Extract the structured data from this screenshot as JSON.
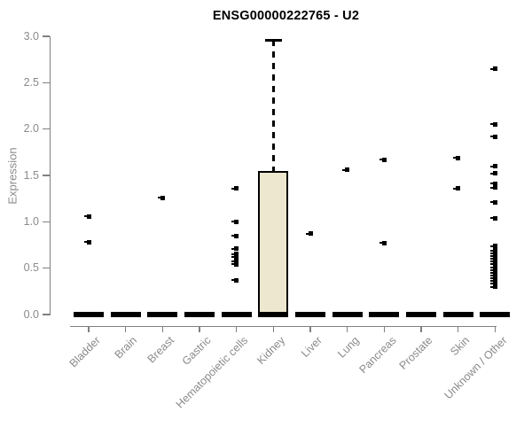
{
  "window": {
    "background": "#ffffff"
  },
  "chart_data": {
    "type": "boxplot",
    "title": "ENSG00000222765 - U2",
    "xlabel": "",
    "ylabel": "Expression",
    "ylim": [
      0,
      3
    ],
    "ytick_labels": [
      "0.0",
      "0.5",
      "1.0",
      "1.5",
      "2.0",
      "2.5",
      "3.0"
    ],
    "grid": false,
    "legend": "none",
    "categories": [
      "Bladder",
      "Brain",
      "Breast",
      "Gastric",
      "Hematopoietic cells",
      "Kidney",
      "Liver",
      "Lung",
      "Pancreas",
      "Prostate",
      "Skin",
      "Unknown / Other"
    ],
    "boxes": [
      {
        "category": "Bladder",
        "median": 0,
        "q1": 0,
        "q3": 0,
        "whisker_low": 0,
        "whisker_high": 0,
        "outliers": [
          1.06,
          0.78
        ]
      },
      {
        "category": "Brain",
        "median": 0,
        "q1": 0,
        "q3": 0,
        "whisker_low": 0,
        "whisker_high": 0,
        "outliers": []
      },
      {
        "category": "Breast",
        "median": 0,
        "q1": 0,
        "q3": 0,
        "whisker_low": 0,
        "whisker_high": 0,
        "outliers": [
          1.26
        ]
      },
      {
        "category": "Gastric",
        "median": 0,
        "q1": 0,
        "q3": 0,
        "whisker_low": 0,
        "whisker_high": 0,
        "outliers": []
      },
      {
        "category": "Hematopoietic cells",
        "median": 0,
        "q1": 0,
        "q3": 0,
        "whisker_low": 0,
        "whisker_high": 0,
        "outliers": [
          1.36,
          1.0,
          0.85,
          0.71,
          0.65,
          0.62,
          0.57,
          0.54,
          0.37
        ]
      },
      {
        "category": "Kidney",
        "median": 0,
        "q1": 0,
        "q3": 1.55,
        "whisker_low": 0,
        "whisker_high": 2.96,
        "outliers": []
      },
      {
        "category": "Liver",
        "median": 0,
        "q1": 0,
        "q3": 0,
        "whisker_low": 0,
        "whisker_high": 0,
        "outliers": [
          0.87
        ]
      },
      {
        "category": "Lung",
        "median": 0,
        "q1": 0,
        "q3": 0,
        "whisker_low": 0,
        "whisker_high": 0,
        "outliers": [
          1.56
        ]
      },
      {
        "category": "Pancreas",
        "median": 0,
        "q1": 0,
        "q3": 0,
        "whisker_low": 0,
        "whisker_high": 0,
        "outliers": [
          1.67,
          0.77
        ]
      },
      {
        "category": "Prostate",
        "median": 0,
        "q1": 0,
        "q3": 0,
        "whisker_low": 0,
        "whisker_high": 0,
        "outliers": []
      },
      {
        "category": "Skin",
        "median": 0,
        "q1": 0,
        "q3": 0,
        "whisker_low": 0,
        "whisker_high": 0,
        "outliers": [
          1.69,
          1.36
        ]
      },
      {
        "category": "Unknown / Other",
        "median": 0,
        "q1": 0,
        "q3": 0,
        "whisker_low": 0,
        "whisker_high": 0,
        "outliers": [
          2.65,
          2.05,
          1.92,
          1.6,
          1.52,
          1.41,
          1.37,
          1.21,
          1.04,
          0.74,
          0.69,
          0.66,
          0.63,
          0.6,
          0.57,
          0.54,
          0.51,
          0.48,
          0.45,
          0.42,
          0.39,
          0.36,
          0.33,
          0.3
        ]
      }
    ],
    "colors": {
      "box_fill": "#ECE7CE",
      "box_border": "#000000",
      "median_line": "#000000",
      "outlier_point": "#000000",
      "axis_line": "#808080",
      "tick_label": "#8a8a8a",
      "title_text": "#000000"
    }
  }
}
